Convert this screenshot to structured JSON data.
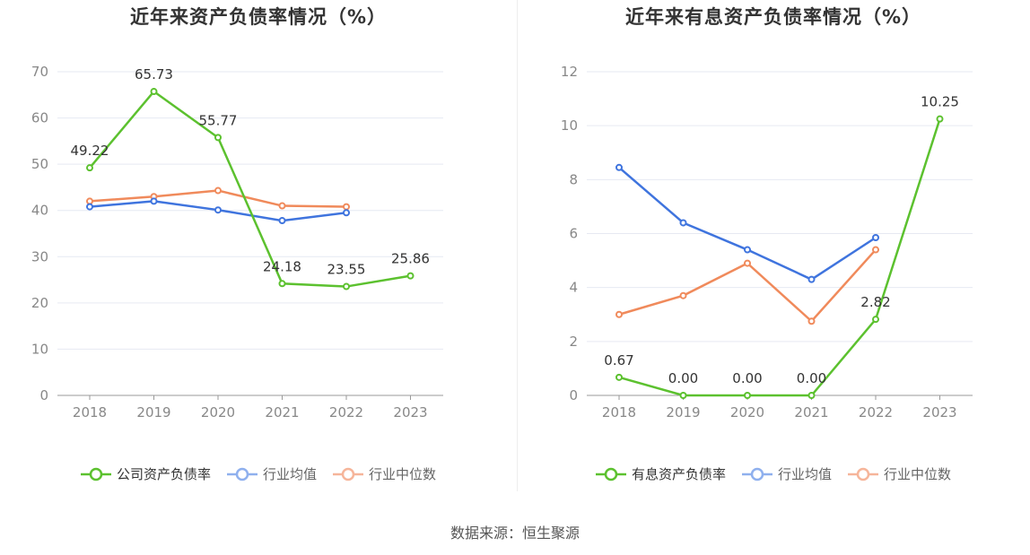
{
  "chart_data": [
    {
      "type": "line",
      "title": "近年来资产负债率情况（%）",
      "categories": [
        "2018",
        "2019",
        "2020",
        "2021",
        "2022",
        "2023"
      ],
      "ylim": [
        0,
        70
      ],
      "yticks": [
        0,
        10,
        20,
        30,
        40,
        50,
        60,
        70
      ],
      "xlabel": "",
      "ylabel": "",
      "series": [
        {
          "name": "公司资产负债率",
          "color": "#5cc12f",
          "values": [
            49.22,
            65.73,
            55.77,
            24.18,
            23.55,
            25.86
          ],
          "labels": [
            "49.22",
            "65.73",
            "55.77",
            "24.18",
            "23.55",
            "25.86"
          ],
          "show_labels": true
        },
        {
          "name": "行业均值",
          "color": "#3f74de",
          "values": [
            40.8,
            42.0,
            40.1,
            37.8,
            39.5,
            null
          ],
          "show_labels": false
        },
        {
          "name": "行业中位数",
          "color": "#f08a5b",
          "values": [
            42.0,
            43.0,
            44.3,
            41.0,
            40.8,
            null
          ],
          "show_labels": false
        }
      ],
      "legend_position": "bottom"
    },
    {
      "type": "line",
      "title": "近年来有息资产负债率情况（%）",
      "categories": [
        "2018",
        "2019",
        "2020",
        "2021",
        "2022",
        "2023"
      ],
      "ylim": [
        0,
        12
      ],
      "yticks": [
        0,
        2,
        4,
        6,
        8,
        10,
        12
      ],
      "xlabel": "",
      "ylabel": "",
      "series": [
        {
          "name": "有息资产负债率",
          "color": "#5cc12f",
          "values": [
            0.67,
            0.0,
            0.0,
            0.0,
            2.82,
            10.25
          ],
          "labels": [
            "0.67",
            "0.00",
            "0.00",
            "0.00",
            "2.82",
            "10.25"
          ],
          "show_labels": true
        },
        {
          "name": "行业均值",
          "color": "#3f74de",
          "values": [
            8.45,
            6.4,
            5.4,
            4.3,
            5.85,
            null
          ],
          "show_labels": false
        },
        {
          "name": "行业中位数",
          "color": "#f08a5b",
          "values": [
            3.0,
            3.7,
            4.9,
            2.75,
            5.4,
            null
          ],
          "show_labels": false
        }
      ],
      "legend_position": "bottom"
    }
  ],
  "legend_colors_faded": {
    "行业均值": "#8fb0ee",
    "行业中位数": "#f6b59a"
  },
  "source": "数据来源：恒生聚源"
}
